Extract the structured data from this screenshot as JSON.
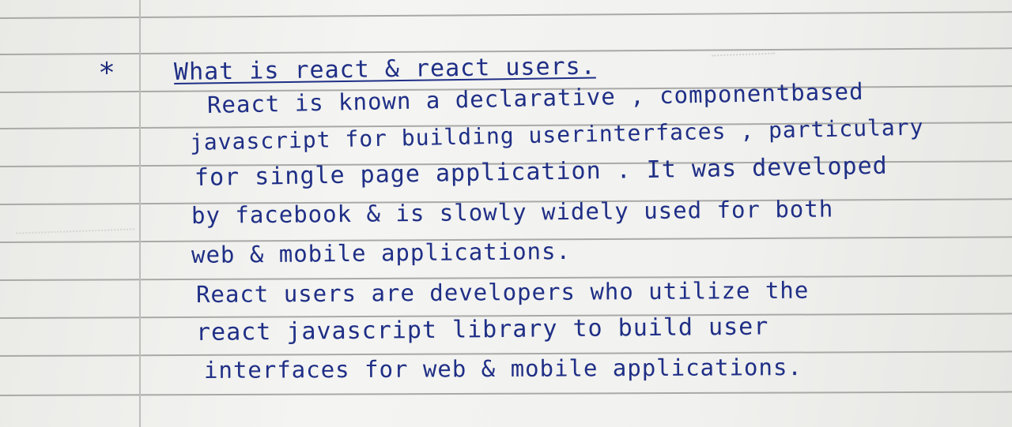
{
  "bullet": "*",
  "heading": "What is react & react users.",
  "paragraph_1": [
    "React is known a declarative , componentbased",
    "javascript for building userinterfaces , particulary",
    "for single page application . It was developed",
    "by facebook & is slowly widely used for both",
    "web & mobile applications."
  ],
  "paragraph_2": [
    "React users are developers who utilize the",
    "react javascript library to build user",
    "interfaces for web & mobile applications."
  ]
}
